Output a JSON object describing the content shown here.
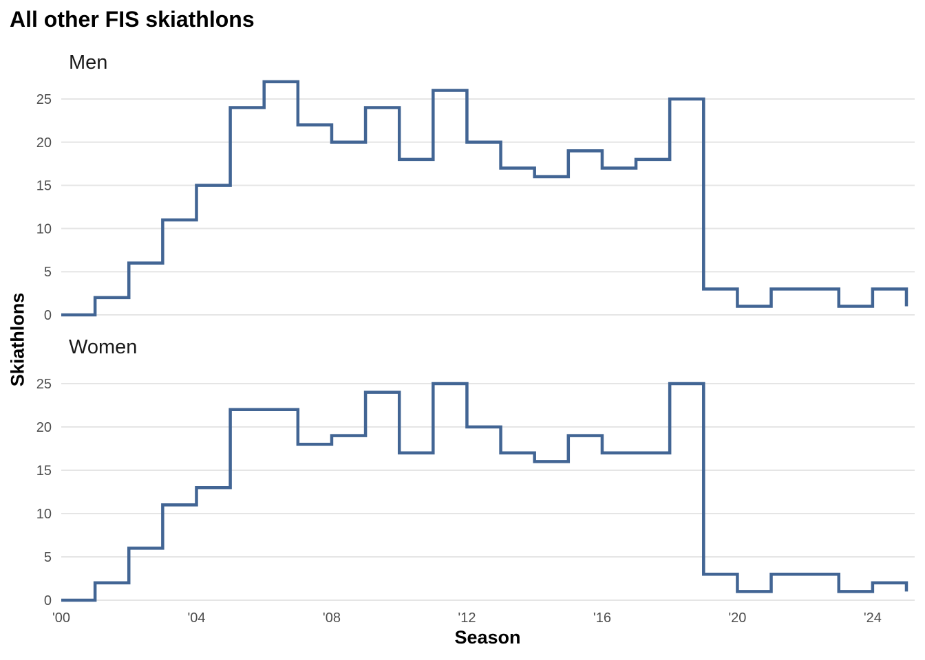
{
  "chart_data": {
    "type": "line",
    "step": true,
    "title": "All other FIS skiathlons",
    "xlabel": "Season",
    "ylabel": "Skiathlons",
    "xlim": [
      2000,
      2025
    ],
    "ylim": [
      0,
      27
    ],
    "x_ticks": [
      {
        "value": 2000,
        "label": "'00"
      },
      {
        "value": 2004,
        "label": "'04"
      },
      {
        "value": 2008,
        "label": "'08"
      },
      {
        "value": 2012,
        "label": "'12"
      },
      {
        "value": 2016,
        "label": "'16"
      },
      {
        "value": 2020,
        "label": "'20"
      },
      {
        "value": 2024,
        "label": "'24"
      }
    ],
    "y_ticks": [
      0,
      5,
      10,
      15,
      20,
      25
    ],
    "grid": "horizontal",
    "color": "#426594",
    "x": [
      2000,
      2001,
      2002,
      2003,
      2004,
      2005,
      2006,
      2007,
      2008,
      2009,
      2010,
      2011,
      2012,
      2013,
      2014,
      2015,
      2016,
      2017,
      2018,
      2019,
      2020,
      2021,
      2022,
      2023,
      2024,
      2025
    ],
    "panels": [
      {
        "name": "Men",
        "values": [
          0,
          2,
          6,
          11,
          15,
          24,
          27,
          22,
          20,
          24,
          18,
          26,
          20,
          17,
          16,
          19,
          17,
          18,
          25,
          3,
          1,
          3,
          3,
          1,
          3,
          1
        ]
      },
      {
        "name": "Women",
        "values": [
          0,
          2,
          6,
          11,
          13,
          22,
          22,
          18,
          19,
          24,
          17,
          25,
          20,
          17,
          16,
          19,
          17,
          17,
          25,
          3,
          1,
          3,
          3,
          1,
          2,
          1
        ]
      }
    ]
  }
}
